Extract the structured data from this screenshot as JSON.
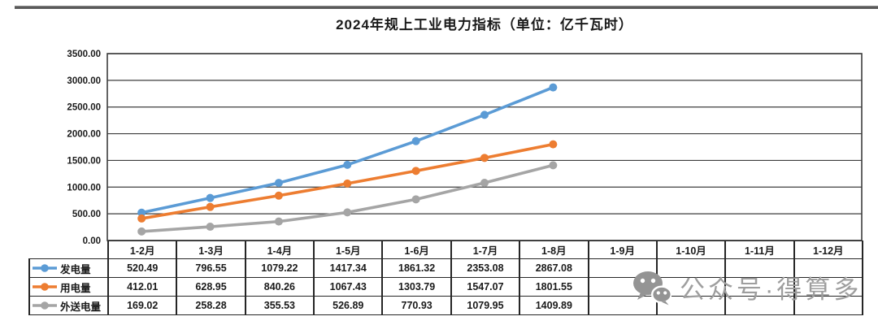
{
  "chart_data": {
    "type": "line",
    "title": "2024年规上工业电力指标（单位：亿千瓦时）",
    "categories": [
      "1-2月",
      "1-3月",
      "1-4月",
      "1-5月",
      "1-6月",
      "1-7月",
      "1-8月",
      "1-9月",
      "1-10月",
      "1-11月",
      "1-12月"
    ],
    "series": [
      {
        "name": "发电量",
        "color": "#5B9BD5",
        "values": [
          520.49,
          796.55,
          1079.22,
          1417.34,
          1861.32,
          2353.08,
          2867.08
        ]
      },
      {
        "name": "用电量",
        "color": "#ED7D31",
        "values": [
          412.01,
          628.95,
          840.26,
          1067.43,
          1303.79,
          1547.07,
          1801.55
        ]
      },
      {
        "name": "外送电量",
        "color": "#A5A5A5",
        "values": [
          169.02,
          258.28,
          355.53,
          526.89,
          770.93,
          1079.95,
          1409.89
        ]
      }
    ],
    "ylim": [
      0,
      3500
    ],
    "ytick_step": 500,
    "ytick_decimals": 2,
    "grid": "horizontal",
    "legend_position": "table-left",
    "marker": "circle"
  },
  "watermark": {
    "text": "公众号·得算多",
    "icon": "wechat-icon"
  },
  "colors": {
    "grid": "#3d3d3d",
    "table_border": "#262626",
    "watermark": "#9e9e9e"
  }
}
